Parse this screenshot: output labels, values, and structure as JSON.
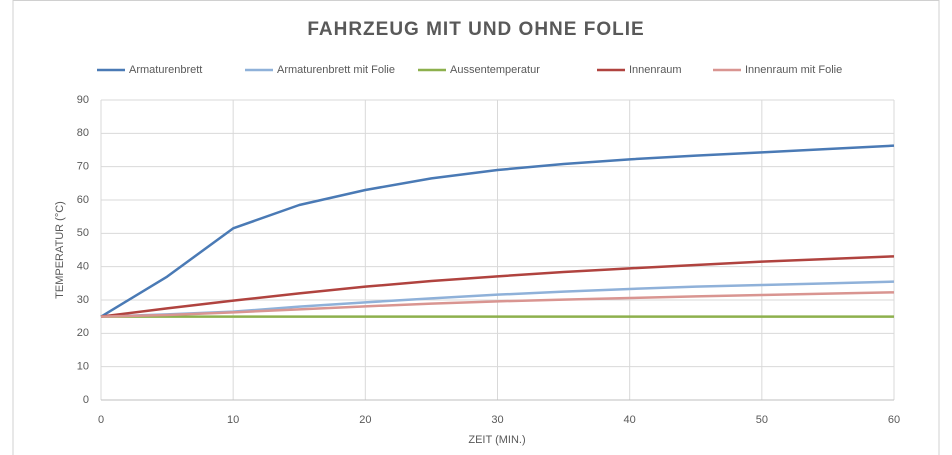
{
  "chart_data": {
    "type": "line",
    "title": "FAHRZEUG MIT UND OHNE FOLIE",
    "x_label": "ZEIT (MIN.)",
    "y_label": "TEMPERATUR (°C)",
    "x": [
      0,
      5,
      10,
      15,
      20,
      25,
      30,
      35,
      40,
      45,
      50,
      55,
      60
    ],
    "series": [
      {
        "name": "Armaturenbrett",
        "color": "#4a7ab5",
        "values": [
          25,
          37,
          51.5,
          58.5,
          63,
          66.5,
          69,
          70.8,
          72.2,
          73.3,
          74.3,
          75.3,
          76.3
        ]
      },
      {
        "name": "Armaturenbrett mit Folie",
        "color": "#8fb1d9",
        "values": [
          25,
          25.7,
          26.5,
          28,
          29.3,
          30.5,
          31.6,
          32.5,
          33.3,
          34,
          34.5,
          35,
          35.5
        ]
      },
      {
        "name": "Aussentemperatur",
        "color": "#8db04d",
        "values": [
          25,
          25,
          25,
          25,
          25,
          25,
          25,
          25,
          25,
          25,
          25,
          25,
          25
        ]
      },
      {
        "name": "Innenraum",
        "color": "#b0433f",
        "values": [
          25,
          27.5,
          29.8,
          32,
          34,
          35.7,
          37.1,
          38.4,
          39.5,
          40.5,
          41.5,
          42.3,
          43.1
        ]
      },
      {
        "name": "Innenraum mit Folie",
        "color": "#d99591",
        "values": [
          25,
          25.5,
          26.3,
          27.2,
          28.1,
          28.9,
          29.6,
          30.1,
          30.6,
          31.1,
          31.5,
          31.9,
          32.3
        ]
      }
    ],
    "xlim": [
      0,
      60
    ],
    "xticks": [
      0,
      10,
      20,
      30,
      40,
      50,
      60
    ],
    "ylim": [
      0,
      90
    ],
    "yticks": [
      0,
      10,
      20,
      30,
      40,
      50,
      60,
      70,
      80,
      90
    ],
    "grid": true,
    "legend": "top"
  }
}
